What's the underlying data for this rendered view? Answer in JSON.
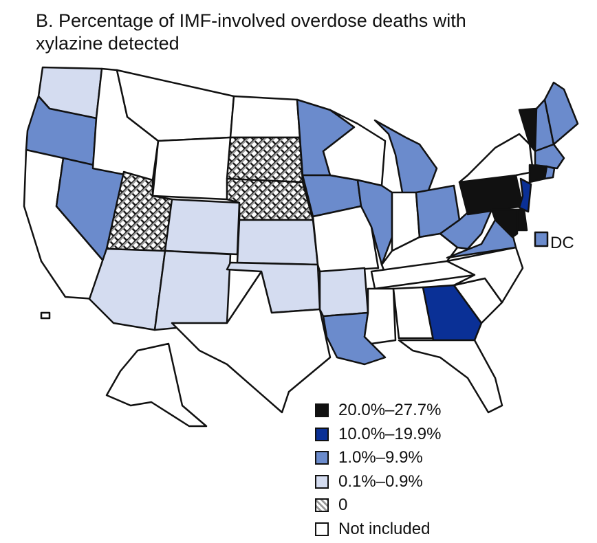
{
  "title_line1": "B. Percentage of IMF-involved overdose deaths with",
  "title_line2": "xylazine detected",
  "dc_label": "DC",
  "colors": {
    "dark": "#111111",
    "navy": "#0a3096",
    "medium": "#6b8bcc",
    "light": "#d4dcf0",
    "none": "#ffffff",
    "hatch": "#9a9a9a"
  },
  "legend": [
    {
      "label": "20.0%–27.7%",
      "category": "dark"
    },
    {
      "label": "10.0%–19.9%",
      "category": "navy"
    },
    {
      "label": "1.0%–9.9%",
      "category": "medium"
    },
    {
      "label": "0.1%–0.9%",
      "category": "light"
    },
    {
      "label": "0",
      "category": "zero"
    },
    {
      "label": "Not included",
      "category": "none"
    }
  ],
  "state_categories": {
    "dark": [
      "Pennsylvania",
      "Vermont",
      "Connecticut",
      "Maryland",
      "Delaware"
    ],
    "navy": [
      "Georgia",
      "New Jersey"
    ],
    "medium": [
      "Oregon",
      "Nevada",
      "Minnesota",
      "Iowa",
      "Illinois",
      "Michigan",
      "Ohio",
      "West Virginia",
      "Virginia",
      "Louisiana",
      "Maine",
      "New Hampshire",
      "Massachusetts",
      "Rhode Island",
      "District of Columbia"
    ],
    "light": [
      "Washington",
      "Arizona",
      "Colorado",
      "New Mexico",
      "Kansas",
      "Oklahoma",
      "Arkansas"
    ],
    "zero": [
      "Utah",
      "South Dakota",
      "Nebraska"
    ]
  }
}
